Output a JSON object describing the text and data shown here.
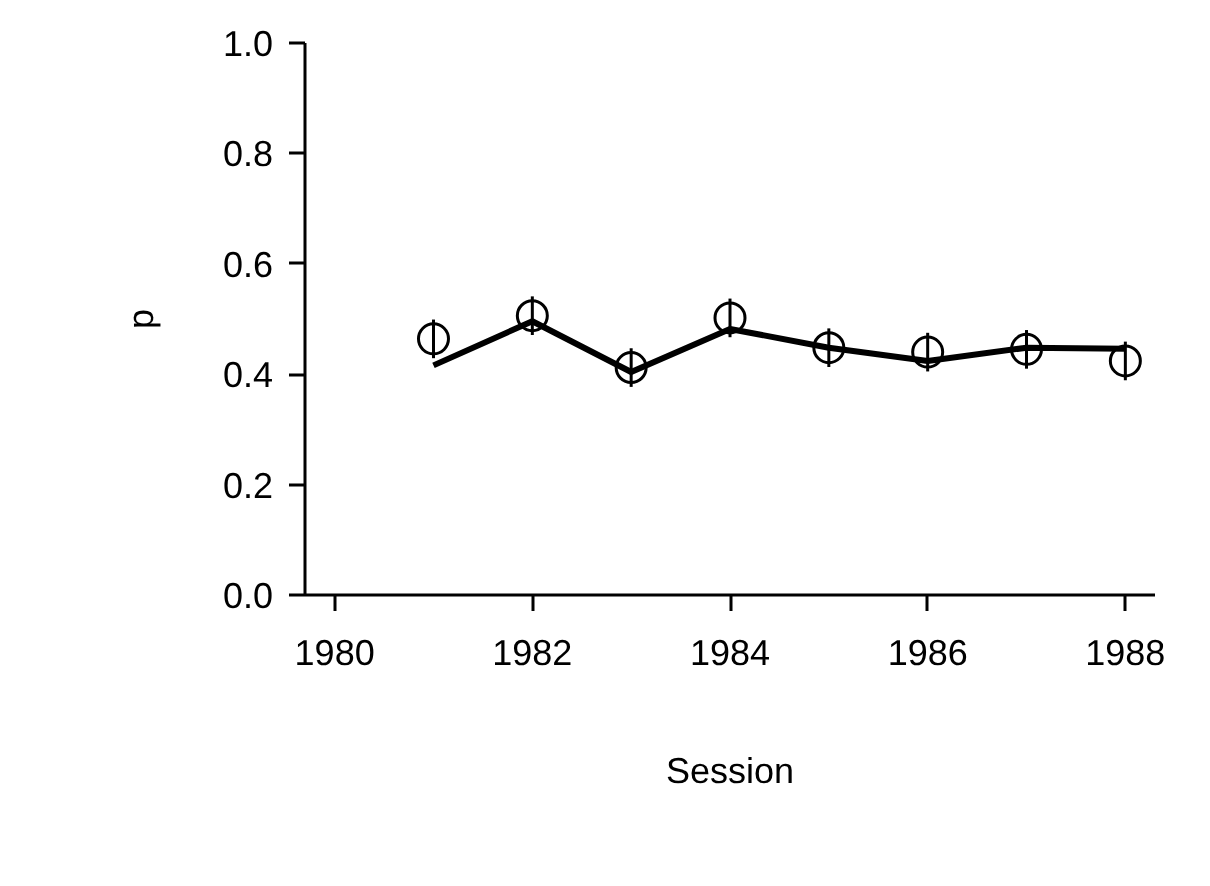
{
  "chart_data": {
    "type": "line",
    "xlabel": "Session",
    "ylabel": "p",
    "x": [
      1981,
      1982,
      1983,
      1984,
      1985,
      1986,
      1987,
      1988
    ],
    "series": [
      {
        "color": "#000000",
        "values": [
          0.416,
          0.496,
          0.404,
          0.482,
          0.448,
          0.424,
          0.448,
          0.446
        ],
        "marker": "none",
        "line_style": "solid"
      },
      {
        "type": "scatter",
        "color": "#000000",
        "values": [
          0.464,
          0.506,
          0.412,
          0.502,
          0.448,
          0.44,
          0.445,
          0.424
        ],
        "errors": [
          0.035,
          0.035,
          0.035,
          0.035,
          0.035,
          0.035,
          0.035,
          0.035
        ],
        "marker": "circle"
      }
    ],
    "xlim": [
      1979.7,
      1988.3
    ],
    "ylim": [
      0,
      1
    ],
    "xticks": [
      1980,
      1982,
      1984,
      1986,
      1988
    ],
    "yticks": [
      {
        "value": 0,
        "label": "0.0"
      },
      {
        "value": 0.2,
        "label": "0.2"
      },
      {
        "value": 0.4,
        "label": "0.4"
      },
      {
        "value": 0.6,
        "label": "0.6"
      },
      {
        "value": 0.8,
        "label": "0.8"
      },
      {
        "value": 1,
        "label": "1.0"
      }
    ],
    "grid": false
  }
}
